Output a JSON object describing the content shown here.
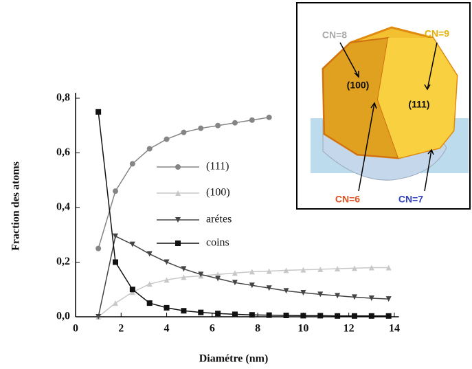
{
  "chart_data": {
    "type": "line",
    "x_label": "Diamétre (nm)",
    "y_label": "Fraction des atoms",
    "xlim": [
      0,
      14.2
    ],
    "ylim": [
      0,
      0.82
    ],
    "xticks": [
      0,
      2,
      4,
      6,
      8,
      10,
      12,
      14
    ],
    "yticks": [
      {
        "value": 0,
        "label": "0,0"
      },
      {
        "value": 0.2,
        "label": "0,2"
      },
      {
        "value": 0.4,
        "label": "0,4"
      },
      {
        "value": 0.6,
        "label": "0,6"
      },
      {
        "value": 0.8,
        "label": "0,8"
      }
    ],
    "series": [
      {
        "name": "(111)",
        "color": "#858585",
        "marker": "circle",
        "x": [
          1,
          1.75,
          2.5,
          3.25,
          4,
          4.75,
          5.5,
          6.25,
          7,
          7.75,
          8.5
        ],
        "values": [
          0.25,
          0.46,
          0.56,
          0.615,
          0.65,
          0.675,
          0.69,
          0.7,
          0.71,
          0.72,
          0.73
        ]
      },
      {
        "name": "(100)",
        "color": "#c8c8c8",
        "marker": "triangle-up",
        "x": [
          1,
          1.75,
          2.5,
          3.25,
          4,
          4.75,
          5.5,
          6.25,
          7,
          7.75,
          8.5,
          9.25,
          10,
          10.75,
          11.5,
          12.25,
          13,
          13.75
        ],
        "values": [
          0,
          0.05,
          0.09,
          0.12,
          0.135,
          0.145,
          0.15,
          0.155,
          0.16,
          0.165,
          0.167,
          0.17,
          0.172,
          0.174,
          0.176,
          0.178,
          0.18,
          0.18
        ]
      },
      {
        "name": "arétes",
        "color": "#454545",
        "marker": "triangle-down",
        "x": [
          1,
          1.75,
          2.5,
          3.25,
          4,
          4.75,
          5.5,
          6.25,
          7,
          7.75,
          8.5,
          9.25,
          10,
          10.75,
          11.5,
          12.25,
          13,
          13.75
        ],
        "values": [
          0,
          0.295,
          0.265,
          0.23,
          0.2,
          0.175,
          0.155,
          0.14,
          0.125,
          0.115,
          0.105,
          0.095,
          0.088,
          0.082,
          0.077,
          0.072,
          0.068,
          0.065
        ]
      },
      {
        "name": "coins",
        "color": "#111111",
        "marker": "square",
        "x": [
          1,
          1.75,
          2.5,
          3.25,
          4,
          4.75,
          5.5,
          6.25,
          7,
          7.75,
          8.5,
          9.25,
          10,
          10.75,
          11.5,
          12.25,
          13,
          13.75
        ],
        "values": [
          0.75,
          0.2,
          0.1,
          0.05,
          0.033,
          0.022,
          0.016,
          0.012,
          0.009,
          0.007,
          0.006,
          0.005,
          0.004,
          0.004,
          0.003,
          0.003,
          0.003,
          0.003
        ]
      }
    ]
  },
  "inset": {
    "labels": [
      "CN=8",
      "CN=9",
      "(100)",
      "(111)",
      "CN=6",
      "CN=7"
    ]
  }
}
